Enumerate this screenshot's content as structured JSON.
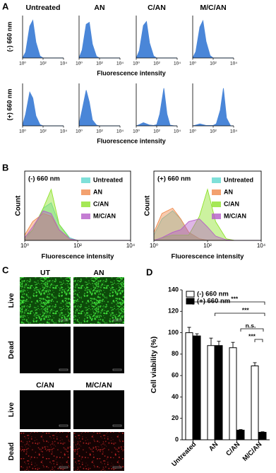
{
  "chart_data": [
    {
      "panel": "A",
      "type": "density-grid",
      "columns": [
        "Untreated",
        "AN",
        "C/AN",
        "M/C/AN"
      ],
      "rows": [
        "(-) 660 nm",
        "(+) 660 nm"
      ],
      "xlabel": "Fluorescence intensity",
      "log_x": true,
      "xlim": [
        1,
        10000
      ],
      "xticks": [
        {
          "value": 1,
          "label": "10⁰"
        },
        {
          "value": 100,
          "label": "10²"
        },
        {
          "value": 10000,
          "label": "10⁴"
        }
      ],
      "ylim": [
        0,
        100
      ],
      "color": "#4a86d8",
      "x": [
        1,
        2,
        5,
        10,
        20,
        50,
        100,
        200,
        500,
        1000,
        2000,
        5000,
        10000
      ],
      "values": [
        [
          [
            0,
            15,
            80,
            95,
            40,
            5,
            0,
            0,
            0,
            0,
            0,
            0,
            0
          ],
          [
            0,
            20,
            85,
            90,
            35,
            4,
            0,
            0,
            0,
            0,
            0,
            0,
            0
          ],
          [
            0,
            18,
            82,
            92,
            38,
            5,
            0,
            0,
            0,
            0,
            0,
            0,
            0
          ],
          [
            0,
            16,
            78,
            94,
            42,
            6,
            0,
            0,
            0,
            0,
            0,
            0,
            0
          ]
        ],
        [
          [
            2,
            30,
            85,
            70,
            25,
            3,
            0,
            0,
            0,
            0,
            0,
            0,
            0
          ],
          [
            5,
            40,
            90,
            60,
            15,
            2,
            0,
            0,
            0,
            0,
            0,
            0,
            0
          ],
          [
            0,
            3,
            8,
            5,
            2,
            1,
            3,
            30,
            95,
            30,
            2,
            0,
            0
          ],
          [
            0,
            2,
            5,
            3,
            1,
            1,
            1,
            5,
            40,
            95,
            20,
            0,
            0
          ]
        ]
      ]
    },
    {
      "panel": "B",
      "type": "density-overlay",
      "ylabel": "Count",
      "xlabel": "Fluorescence intensity",
      "log_x": true,
      "xlim": [
        1,
        10000
      ],
      "xticks": [
        {
          "value": 1,
          "label": "10⁰"
        },
        {
          "value": 100,
          "label": "10²"
        },
        {
          "value": 10000,
          "label": "10⁴"
        }
      ],
      "ylim": [
        0,
        100
      ],
      "x": [
        1,
        2,
        5,
        10,
        20,
        50,
        100,
        200,
        500,
        1000,
        2000,
        5000,
        10000
      ],
      "subplots": [
        {
          "title": "(-) 660 nm",
          "series": [
            {
              "name": "Untreated",
              "color": "#5fd8d0",
              "values": [
                0,
                20,
                60,
                70,
                30,
                5,
                0,
                0,
                0,
                0,
                0,
                0,
                0
              ]
            },
            {
              "name": "AN",
              "color": "#f08a4b",
              "values": [
                10,
                35,
                50,
                45,
                20,
                3,
                0,
                0,
                0,
                0,
                0,
                0,
                0
              ]
            },
            {
              "name": "C/AN",
              "color": "#8fe22a",
              "values": [
                5,
                20,
                60,
                95,
                30,
                3,
                0,
                0,
                0,
                0,
                0,
                0,
                0
              ]
            },
            {
              "name": "M/C/AN",
              "color": "#b55dc8",
              "values": [
                5,
                25,
                55,
                50,
                20,
                3,
                0,
                0,
                0,
                0,
                0,
                0,
                0
              ]
            }
          ]
        },
        {
          "title": "(+) 660 nm",
          "series": [
            {
              "name": "Untreated",
              "color": "#5fd8d0",
              "values": [
                10,
                40,
                55,
                40,
                15,
                3,
                0,
                0,
                0,
                0,
                0,
                0,
                0
              ]
            },
            {
              "name": "AN",
              "color": "#f08a4b",
              "values": [
                15,
                50,
                60,
                40,
                15,
                3,
                0,
                0,
                0,
                0,
                0,
                0,
                0
              ]
            },
            {
              "name": "C/AN",
              "color": "#8fe22a",
              "values": [
                0,
                5,
                10,
                10,
                10,
                45,
                95,
                35,
                3,
                0,
                0,
                0,
                0
              ]
            },
            {
              "name": "M/C/AN",
              "color": "#b55dc8",
              "values": [
                0,
                5,
                15,
                20,
                35,
                40,
                25,
                8,
                1,
                0,
                0,
                0,
                0
              ]
            }
          ]
        }
      ]
    },
    {
      "panel": "D",
      "type": "bar",
      "ylabel": "Cell viability (%)",
      "categories": [
        "Untreated",
        "AN",
        "C/AN",
        "M/C/AN"
      ],
      "ylim": [
        0,
        140
      ],
      "yticks": [
        0,
        20,
        40,
        60,
        80,
        100,
        120,
        140
      ],
      "series": [
        {
          "name": "(-) 660 nm",
          "color": "#ffffff",
          "values": [
            100,
            88,
            86,
            69
          ],
          "errors": [
            5,
            7,
            5,
            3
          ]
        },
        {
          "name": "(+) 660 nm",
          "color": "#000000",
          "values": [
            97,
            88,
            9,
            7
          ],
          "errors": [
            2,
            4,
            0.5,
            0.5
          ]
        }
      ],
      "annotations": [
        "***",
        "***",
        "n.s.",
        "***"
      ]
    }
  ],
  "micrographs": {
    "panel": "C",
    "blocks": [
      {
        "columns": [
          "UT",
          "AN"
        ]
      },
      {
        "columns": [
          "C/AN",
          "M/C/AN"
        ]
      }
    ],
    "rows": [
      "Live",
      "Dead"
    ]
  }
}
